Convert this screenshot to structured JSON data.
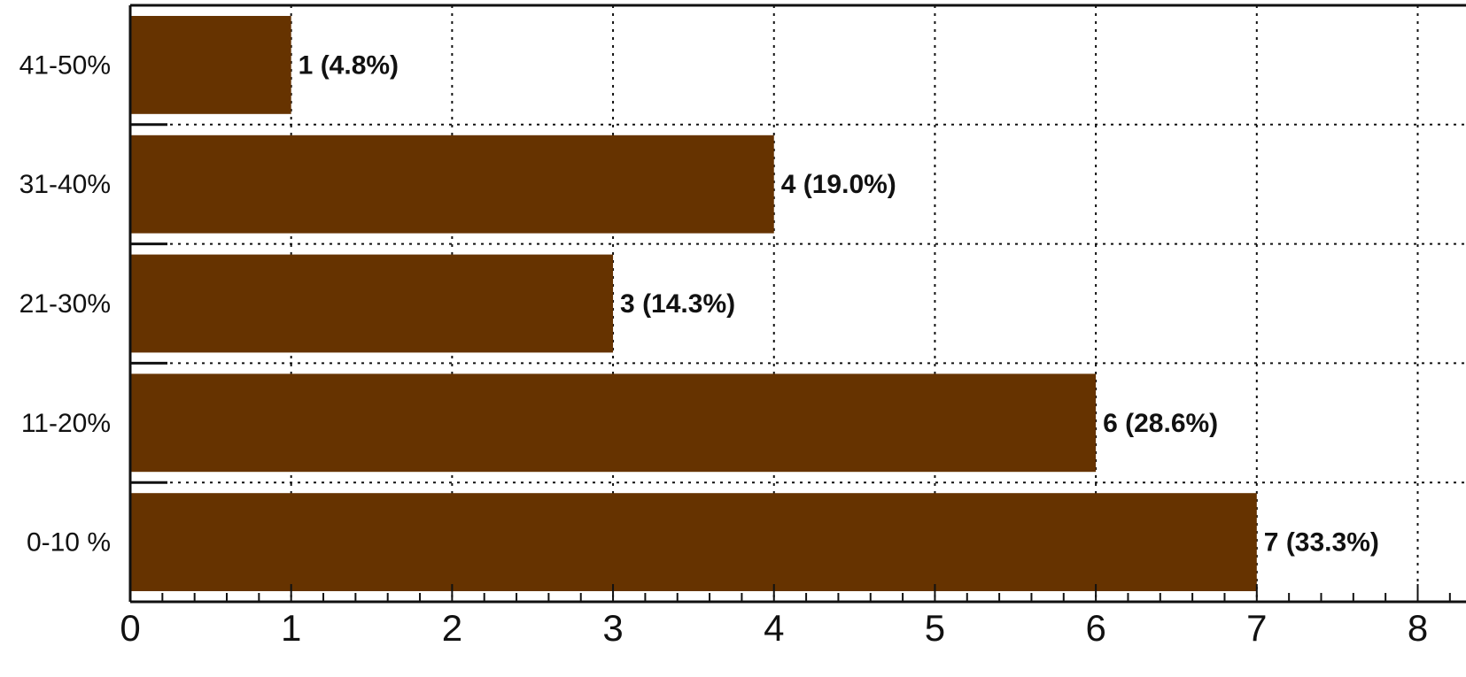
{
  "chart_data": {
    "type": "bar",
    "orientation": "horizontal",
    "categories": [
      "0-10 %",
      "11-20%",
      "21-30%",
      "31-40%",
      "41-50%"
    ],
    "values": [
      7,
      6,
      3,
      4,
      1
    ],
    "data_labels": [
      "7 (33.3%)",
      "6 (28.6%)",
      "3 (14.3%)",
      "4 (19.0%)",
      "1 (4.8%)"
    ],
    "bar_color": "#663300",
    "xlim": [
      0,
      8.3
    ],
    "x_ticks": [
      "0",
      "1",
      "2",
      "3",
      "4",
      "5",
      "6",
      "7",
      "8"
    ],
    "grid": true,
    "title": "",
    "xlabel": "",
    "ylabel": ""
  }
}
